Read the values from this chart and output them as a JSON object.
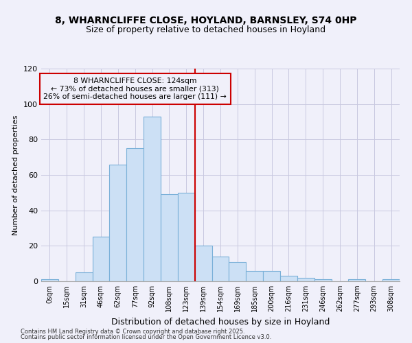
{
  "title": "8, WHARNCLIFFE CLOSE, HOYLAND, BARNSLEY, S74 0HP",
  "subtitle": "Size of property relative to detached houses in Hoyland",
  "xlabel": "Distribution of detached houses by size in Hoyland",
  "ylabel": "Number of detached properties",
  "bar_labels": [
    "0sqm",
    "15sqm",
    "31sqm",
    "46sqm",
    "62sqm",
    "77sqm",
    "92sqm",
    "108sqm",
    "123sqm",
    "139sqm",
    "154sqm",
    "169sqm",
    "185sqm",
    "200sqm",
    "216sqm",
    "231sqm",
    "246sqm",
    "262sqm",
    "277sqm",
    "293sqm",
    "308sqm"
  ],
  "bar_heights": [
    1,
    0,
    5,
    25,
    66,
    75,
    93,
    49,
    50,
    20,
    14,
    11,
    6,
    6,
    3,
    2,
    1,
    0,
    1,
    0,
    1
  ],
  "bar_color": "#cce0f5",
  "bar_edge_color": "#7ab0d8",
  "vline_color": "#cc0000",
  "annotation_title": "8 WHARNCLIFFE CLOSE: 124sqm",
  "annotation_line1": "← 73% of detached houses are smaller (313)",
  "annotation_line2": "26% of semi-detached houses are larger (111) →",
  "annotation_box_color": "#cc0000",
  "ylim": [
    0,
    120
  ],
  "yticks": [
    0,
    20,
    40,
    60,
    80,
    100,
    120
  ],
  "footnote1": "Contains HM Land Registry data © Crown copyright and database right 2025.",
  "footnote2": "Contains public sector information licensed under the Open Government Licence v3.0.",
  "bg_color": "#f0f0fa",
  "grid_color": "#c8c8e0"
}
